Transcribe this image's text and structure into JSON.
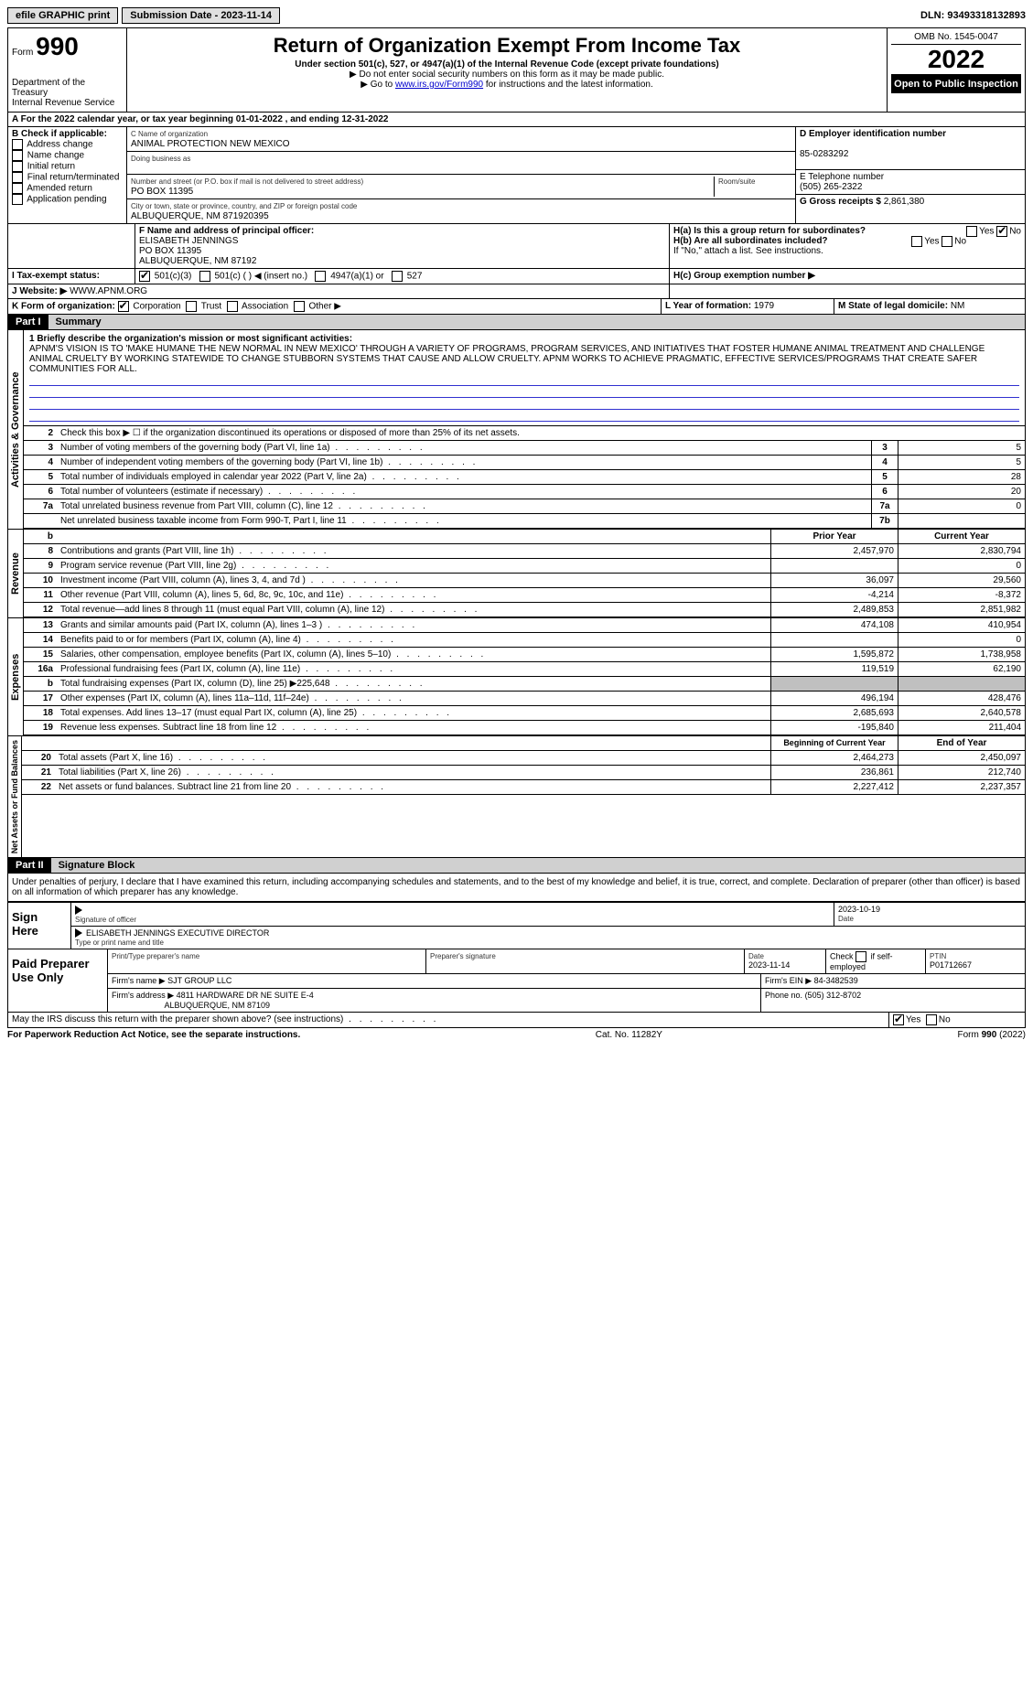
{
  "topbar": {
    "efile": "efile GRAPHIC print",
    "submission": "Submission Date - 2023-11-14",
    "dln": "DLN: 93493318132893"
  },
  "header": {
    "form_label": "Form",
    "form_num": "990",
    "dept": "Department of the Treasury",
    "irs": "Internal Revenue Service",
    "title": "Return of Organization Exempt From Income Tax",
    "subtitle": "Under section 501(c), 527, or 4947(a)(1) of the Internal Revenue Code (except private foundations)",
    "note1": "▶ Do not enter social security numbers on this form as it may be made public.",
    "note2_pre": "▶ Go to ",
    "note2_link": "www.irs.gov/Form990",
    "note2_post": " for instructions and the latest information.",
    "omb": "OMB No. 1545-0047",
    "year": "2022",
    "open": "Open to Public Inspection"
  },
  "row_a": "A For the 2022 calendar year, or tax year beginning 01-01-2022    , and ending 12-31-2022",
  "section_b": {
    "label": "B Check if applicable:",
    "items": [
      "Address change",
      "Name change",
      "Initial return",
      "Final return/terminated",
      "Amended return",
      "Application pending"
    ]
  },
  "section_c": {
    "name_label": "C Name of organization",
    "name": "ANIMAL PROTECTION NEW MEXICO",
    "dba_label": "Doing business as",
    "addr_label": "Number and street (or P.O. box if mail is not delivered to street address)",
    "addr": "PO BOX 11395",
    "room_label": "Room/suite",
    "city_label": "City or town, state or province, country, and ZIP or foreign postal code",
    "city": "ALBUQUERQUE, NM  871920395"
  },
  "section_d": {
    "label": "D Employer identification number",
    "value": "85-0283292"
  },
  "section_e": {
    "label": "E Telephone number",
    "value": "(505) 265-2322"
  },
  "section_g": {
    "label": "G Gross receipts $",
    "value": "2,861,380"
  },
  "section_f": {
    "label": "F  Name and address of principal officer:",
    "name": "ELISABETH JENNINGS",
    "addr1": "PO BOX 11395",
    "addr2": "ALBUQUERQUE, NM  87192"
  },
  "section_h": {
    "ha": "H(a)  Is this a group return for subordinates?",
    "hb": "H(b)  Are all subordinates included?",
    "hb_note": "If \"No,\" attach a list. See instructions.",
    "hc": "H(c)  Group exemption number ▶",
    "yes": "Yes",
    "no": "No"
  },
  "section_i": {
    "label": "I  Tax-exempt status:",
    "opts": [
      "501(c)(3)",
      "501(c) (  ) ◀ (insert no.)",
      "4947(a)(1) or",
      "527"
    ]
  },
  "section_j": {
    "label": "J  Website: ▶",
    "value": "WWW.APNM.ORG"
  },
  "section_k": {
    "label": "K Form of organization:",
    "opts": [
      "Corporation",
      "Trust",
      "Association",
      "Other ▶"
    ]
  },
  "section_l": {
    "label": "L Year of formation:",
    "value": "1979"
  },
  "section_m": {
    "label": "M State of legal domicile:",
    "value": "NM"
  },
  "part1": {
    "tag": "Part I",
    "title": "Summary"
  },
  "mission": {
    "label": "1  Briefly describe the organization's mission or most significant activities:",
    "text": "APNM'S VISION IS TO 'MAKE HUMANE THE NEW NORMAL IN NEW MEXICO' THROUGH A VARIETY OF PROGRAMS, PROGRAM SERVICES, AND INITIATIVES THAT FOSTER HUMANE ANIMAL TREATMENT AND CHALLENGE ANIMAL CRUELTY BY WORKING STATEWIDE TO CHANGE STUBBORN SYSTEMS THAT CAUSE AND ALLOW CRUELTY. APNM WORKS TO ACHIEVE PRAGMATIC, EFFECTIVE SERVICES/PROGRAMS THAT CREATE SAFER COMMUNITIES FOR ALL."
  },
  "line2": "Check this box ▶ ☐  if the organization discontinued its operations or disposed of more than 25% of its net assets.",
  "governance_lines": [
    {
      "n": "3",
      "d": "Number of voting members of the governing body (Part VI, line 1a)",
      "b": "3",
      "v": "5"
    },
    {
      "n": "4",
      "d": "Number of independent voting members of the governing body (Part VI, line 1b)",
      "b": "4",
      "v": "5"
    },
    {
      "n": "5",
      "d": "Total number of individuals employed in calendar year 2022 (Part V, line 2a)",
      "b": "5",
      "v": "28"
    },
    {
      "n": "6",
      "d": "Total number of volunteers (estimate if necessary)",
      "b": "6",
      "v": "20"
    },
    {
      "n": "7a",
      "d": "Total unrelated business revenue from Part VIII, column (C), line 12",
      "b": "7a",
      "v": "0"
    },
    {
      "n": "",
      "d": "Net unrelated business taxable income from Form 990-T, Part I, line 11",
      "b": "7b",
      "v": ""
    }
  ],
  "two_col_header": {
    "b": "b",
    "py": "Prior Year",
    "cy": "Current Year"
  },
  "revenue_lines": [
    {
      "n": "8",
      "d": "Contributions and grants (Part VIII, line 1h)",
      "py": "2,457,970",
      "cy": "2,830,794"
    },
    {
      "n": "9",
      "d": "Program service revenue (Part VIII, line 2g)",
      "py": "",
      "cy": "0"
    },
    {
      "n": "10",
      "d": "Investment income (Part VIII, column (A), lines 3, 4, and 7d )",
      "py": "36,097",
      "cy": "29,560"
    },
    {
      "n": "11",
      "d": "Other revenue (Part VIII, column (A), lines 5, 6d, 8c, 9c, 10c, and 11e)",
      "py": "-4,214",
      "cy": "-8,372"
    },
    {
      "n": "12",
      "d": "Total revenue—add lines 8 through 11 (must equal Part VIII, column (A), line 12)",
      "py": "2,489,853",
      "cy": "2,851,982"
    }
  ],
  "expense_lines": [
    {
      "n": "13",
      "d": "Grants and similar amounts paid (Part IX, column (A), lines 1–3 )",
      "py": "474,108",
      "cy": "410,954"
    },
    {
      "n": "14",
      "d": "Benefits paid to or for members (Part IX, column (A), line 4)",
      "py": "",
      "cy": "0"
    },
    {
      "n": "15",
      "d": "Salaries, other compensation, employee benefits (Part IX, column (A), lines 5–10)",
      "py": "1,595,872",
      "cy": "1,738,958"
    },
    {
      "n": "16a",
      "d": "Professional fundraising fees (Part IX, column (A), line 11e)",
      "py": "119,519",
      "cy": "62,190"
    },
    {
      "n": "b",
      "d": "Total fundraising expenses (Part IX, column (D), line 25) ▶225,648",
      "py": "shaded",
      "cy": "shaded"
    },
    {
      "n": "17",
      "d": "Other expenses (Part IX, column (A), lines 11a–11d, 11f–24e)",
      "py": "496,194",
      "cy": "428,476"
    },
    {
      "n": "18",
      "d": "Total expenses. Add lines 13–17 (must equal Part IX, column (A), line 25)",
      "py": "2,685,693",
      "cy": "2,640,578"
    },
    {
      "n": "19",
      "d": "Revenue less expenses. Subtract line 18 from line 12",
      "py": "-195,840",
      "cy": "211,404"
    }
  ],
  "net_header": {
    "py": "Beginning of Current Year",
    "cy": "End of Year"
  },
  "net_lines": [
    {
      "n": "20",
      "d": "Total assets (Part X, line 16)",
      "py": "2,464,273",
      "cy": "2,450,097"
    },
    {
      "n": "21",
      "d": "Total liabilities (Part X, line 26)",
      "py": "236,861",
      "cy": "212,740"
    },
    {
      "n": "22",
      "d": "Net assets or fund balances. Subtract line 21 from line 20",
      "py": "2,227,412",
      "cy": "2,237,357"
    }
  ],
  "part2": {
    "tag": "Part II",
    "title": "Signature Block"
  },
  "perjury": "Under penalties of perjury, I declare that I have examined this return, including accompanying schedules and statements, and to the best of my knowledge and belief, it is true, correct, and complete. Declaration of preparer (other than officer) is based on all information of which preparer has any knowledge.",
  "sign": {
    "label": "Sign Here",
    "sig_label": "Signature of officer",
    "date_label": "Date",
    "date": "2023-10-19",
    "name": "ELISABETH JENNINGS  EXECUTIVE DIRECTOR",
    "name_label": "Type or print name and title"
  },
  "preparer": {
    "label": "Paid Preparer Use Only",
    "h1": "Print/Type preparer's name",
    "h2": "Preparer's signature",
    "h3": "Date",
    "date": "2023-11-14",
    "h4_pre": "Check",
    "h4_post": "if self-employed",
    "h5": "PTIN",
    "ptin": "P01712667",
    "firm_name_label": "Firm's name    ▶",
    "firm_name": "SJT GROUP LLC",
    "firm_ein_label": "Firm's EIN ▶",
    "firm_ein": "84-3482539",
    "firm_addr_label": "Firm's address ▶",
    "firm_addr1": "4811 HARDWARE DR NE SUITE E-4",
    "firm_addr2": "ALBUQUERQUE, NM  87109",
    "phone_label": "Phone no.",
    "phone": "(505) 312-8702"
  },
  "discuss": "May the IRS discuss this return with the preparer shown above? (see instructions)",
  "footer": {
    "left": "For Paperwork Reduction Act Notice, see the separate instructions.",
    "mid": "Cat. No. 11282Y",
    "right_pre": "Form ",
    "right_num": "990",
    "right_post": " (2022)"
  },
  "side_labels": {
    "gov": "Activities & Governance",
    "rev": "Revenue",
    "exp": "Expenses",
    "net": "Net Assets or Fund Balances"
  }
}
